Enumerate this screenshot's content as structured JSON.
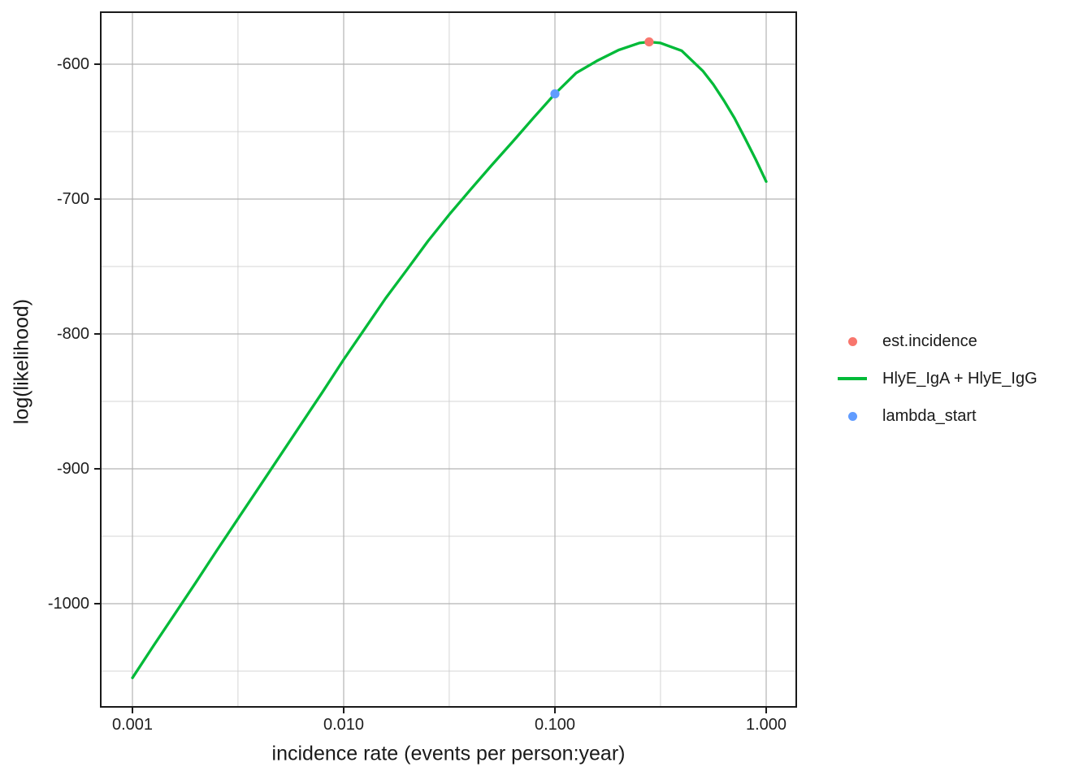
{
  "figure": {
    "background": "#ffffff"
  },
  "axes": {
    "x": {
      "title": "incidence rate (events per person:year)",
      "scale": "log10",
      "ticks": [
        {
          "value": 0.001,
          "label": "0.001"
        },
        {
          "value": 0.01,
          "label": "0.010"
        },
        {
          "value": 0.1,
          "label": "0.100"
        },
        {
          "value": 1.0,
          "label": "1.000"
        }
      ],
      "minor": [
        0.00316,
        0.0316,
        0.316
      ]
    },
    "y": {
      "title": "log(likelihood)",
      "ticks": [
        {
          "value": -600,
          "label": "-600"
        },
        {
          "value": -700,
          "label": "-700"
        },
        {
          "value": -800,
          "label": "-800"
        },
        {
          "value": -900,
          "label": "-900"
        },
        {
          "value": -1000,
          "label": "-1000"
        }
      ],
      "minor": [
        -650,
        -750,
        -850,
        -950,
        -1050
      ]
    }
  },
  "legend": {
    "items": [
      {
        "label": "est.incidence",
        "swatch": "point",
        "color": "#F8766D"
      },
      {
        "label": "HlyE_IgA + HlyE_IgG",
        "swatch": "line",
        "color": "#00BA38"
      },
      {
        "label": "lambda_start",
        "swatch": "point",
        "color": "#619CFF"
      }
    ]
  },
  "colors": {
    "grid_major": "#B3B3B3",
    "grid_minor": "#D4D4D4",
    "panel_border": "#1a1a1a",
    "curve": "#00BA38",
    "est_incidence": "#F8766D",
    "lambda_start": "#619CFF"
  },
  "chart_data": {
    "type": "line",
    "title": "",
    "xlabel": "incidence rate (events per person:year)",
    "ylabel": "log(likelihood)",
    "x_scale": "log10",
    "xlim": [
      0.001,
      1.0
    ],
    "ylim": [
      -1077,
      -560
    ],
    "grid": true,
    "legend_position": "right",
    "series": [
      {
        "name": "HlyE_IgA + HlyE_IgG",
        "type": "line",
        "color": "#00BA38",
        "points": [
          [
            0.001,
            -1055
          ],
          [
            0.00126,
            -1031
          ],
          [
            0.00158,
            -1008
          ],
          [
            0.002,
            -984
          ],
          [
            0.00251,
            -960.5
          ],
          [
            0.00316,
            -937
          ],
          [
            0.00398,
            -913.5
          ],
          [
            0.00501,
            -890
          ],
          [
            0.00631,
            -866.5
          ],
          [
            0.00794,
            -843
          ],
          [
            0.01,
            -819
          ],
          [
            0.0126,
            -796
          ],
          [
            0.0158,
            -773.5
          ],
          [
            0.02,
            -752
          ],
          [
            0.0251,
            -731
          ],
          [
            0.0316,
            -711.5
          ],
          [
            0.0398,
            -693
          ],
          [
            0.0501,
            -675
          ],
          [
            0.0631,
            -657.5
          ],
          [
            0.0794,
            -639.5
          ],
          [
            0.1,
            -622
          ],
          [
            0.126,
            -606.5
          ],
          [
            0.158,
            -597.5
          ],
          [
            0.2,
            -589.5
          ],
          [
            0.251,
            -584.3
          ],
          [
            0.279,
            -583.5
          ],
          [
            0.316,
            -584.3
          ],
          [
            0.398,
            -590
          ],
          [
            0.501,
            -605
          ],
          [
            0.562,
            -615
          ],
          [
            0.631,
            -627
          ],
          [
            0.708,
            -640
          ],
          [
            0.794,
            -655
          ],
          [
            0.891,
            -670.5
          ],
          [
            1.0,
            -687
          ]
        ]
      },
      {
        "name": "est.incidence",
        "type": "point",
        "color": "#F8766D",
        "points": [
          [
            0.279,
            -583.5
          ]
        ]
      },
      {
        "name": "lambda_start",
        "type": "point",
        "color": "#619CFF",
        "points": [
          [
            0.1,
            -622
          ]
        ]
      }
    ]
  }
}
